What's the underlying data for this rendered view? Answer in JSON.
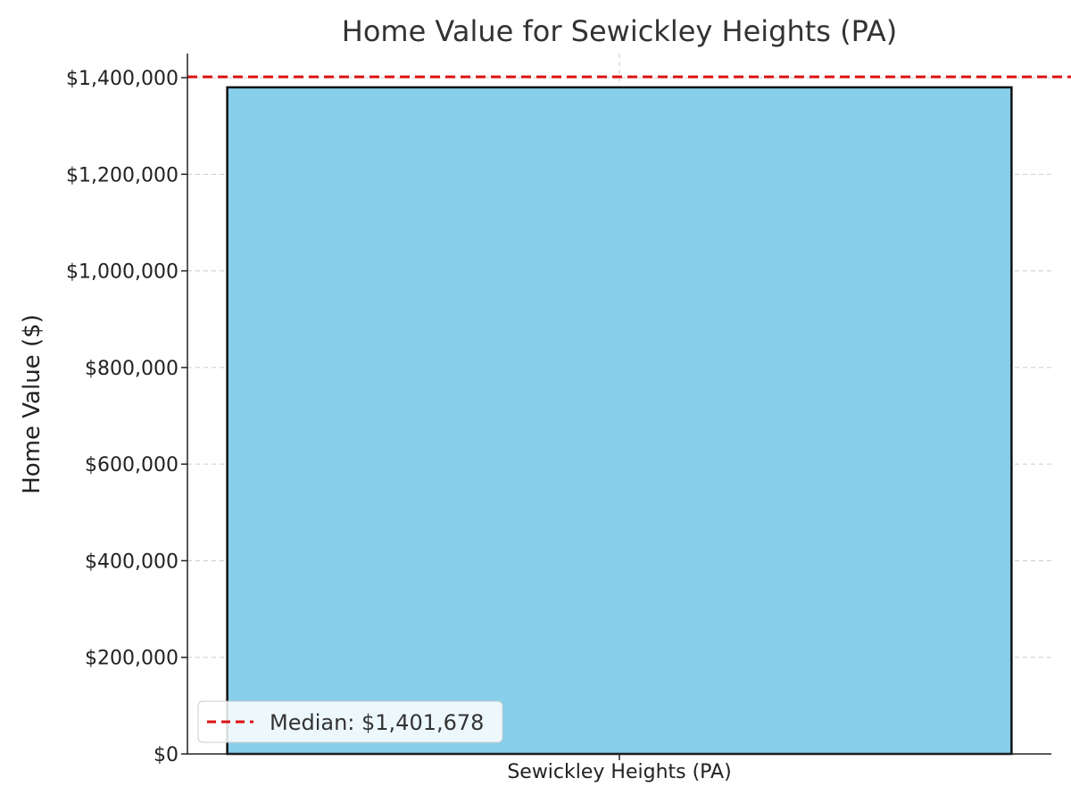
{
  "chart_data": {
    "type": "bar",
    "title": "Home Value for Sewickley Heights (PA)",
    "xlabel": "",
    "ylabel": "Home Value ($)",
    "categories": [
      "Sewickley Heights (PA)"
    ],
    "values": [
      1380000
    ],
    "ylim": [
      0,
      1450000
    ],
    "yticks": [
      0,
      200000,
      400000,
      600000,
      800000,
      1000000,
      1200000,
      1400000
    ],
    "ytick_labels": [
      "$0",
      "$200,000",
      "$400,000",
      "$600,000",
      "$800,000",
      "$1,000,000",
      "$1,200,000",
      "$1,400,000"
    ],
    "reference_line": {
      "value": 1401678,
      "label": "Median: $1,401,678",
      "style": "dashed",
      "color": "#dd1111"
    },
    "legend": {
      "position": "lower-left",
      "entries": [
        "Median: $1,401,678"
      ]
    },
    "grid": true,
    "colors": {
      "bar_fill": "#87ceeb",
      "bar_edge": "#111111",
      "grid": "#cccccc",
      "axis": "#222222",
      "median_line": "#dd1111"
    }
  }
}
